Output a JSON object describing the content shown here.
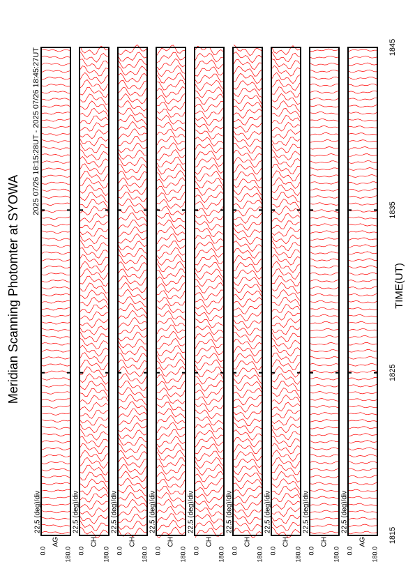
{
  "chart_data": {
    "type": "line",
    "title": "Meridian Scanning Photomter at SYOWA",
    "subtitle": "2025 07/26 18:15:28UT - 2025 07/26 18:45:27UT",
    "x_label": "TIME(UT)",
    "xlim": [
      1815,
      1845
    ],
    "xticks": [
      1815,
      1825,
      1835,
      1845
    ],
    "scale_label": "22.5 (deg)/div",
    "ylim": [
      0,
      180
    ],
    "yticks": [
      {
        "value": 0,
        "label": "0.0"
      },
      {
        "value": 180,
        "label": "180.0"
      }
    ],
    "color": "#ff0000",
    "panels": [
      {
        "name": "AG"
      },
      {
        "name": "CH"
      },
      {
        "name": "CH"
      },
      {
        "name": "CH"
      },
      {
        "name": "CH"
      },
      {
        "name": "CH"
      },
      {
        "name": "CH"
      },
      {
        "name": "CH"
      },
      {
        "name": "AG"
      }
    ]
  }
}
